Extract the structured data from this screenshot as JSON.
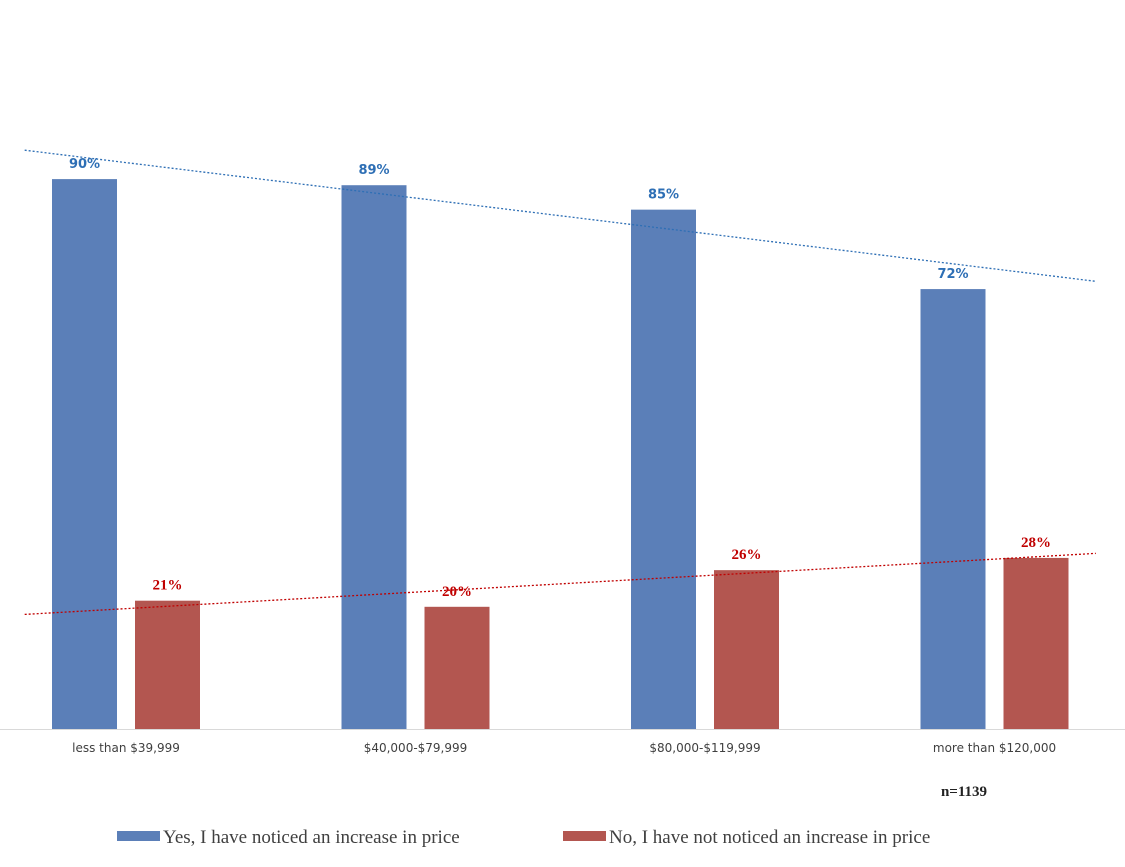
{
  "chart_data": {
    "type": "bar",
    "title": "",
    "xlabel": "",
    "ylabel": "",
    "ylim": [
      0,
      100
    ],
    "categories": [
      "less than $39,999",
      "$40,000-$79,999",
      "$80,000-$119,999",
      "more than $120,000"
    ],
    "series": [
      {
        "name": "Yes, I have noticed an increase in price",
        "values": [
          90,
          89,
          85,
          72
        ],
        "labels": [
          "90%",
          "89%",
          "85%",
          "72%"
        ],
        "color": "#5b7fb8",
        "label_color": "#2e6fb5",
        "trendline": true
      },
      {
        "name": "No, I have not noticed an increase in price",
        "values": [
          21,
          20,
          26,
          28
        ],
        "labels": [
          "21%",
          "20%",
          "26%",
          "28%"
        ],
        "color": "#b35650",
        "label_color": "#c00000",
        "trendline": true
      }
    ],
    "annotation": "n=1139",
    "legend_position": "bottom",
    "grid": false
  }
}
